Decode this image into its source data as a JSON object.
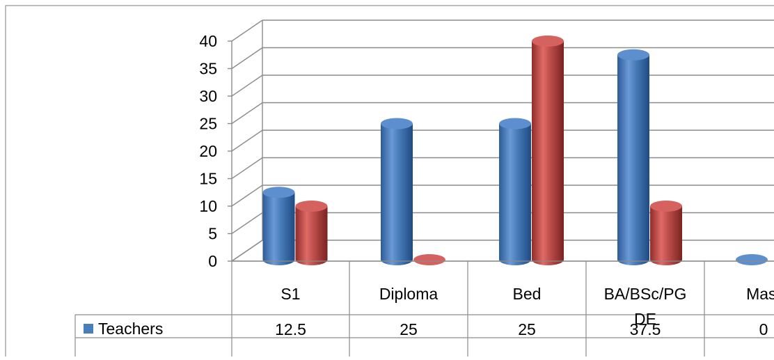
{
  "chart_data": {
    "type": "bar",
    "title": "",
    "xlabel": "",
    "ylabel": "",
    "ylim": [
      0,
      40
    ],
    "yticks": [
      0,
      5,
      10,
      15,
      20,
      25,
      30,
      35,
      40
    ],
    "grid": true,
    "style": "3d-cylinder",
    "legend": "data-table-rows",
    "categories": [
      "S1",
      "Diploma",
      "Bed",
      "BA/BSc/PGDE",
      "Masters"
    ],
    "visible_category_labels": [
      "S1",
      "Diploma",
      "Bed",
      "BA/BSc/PG",
      "Mast"
    ],
    "visible_category_label_overflow": [
      "",
      "",
      "",
      "DE",
      ""
    ],
    "series": [
      {
        "name": "Teachers",
        "values": [
          12.5,
          25,
          25,
          37.5,
          0
        ],
        "color": "#4a7ebb"
      },
      {
        "name": "",
        "values": [
          10,
          0,
          40,
          10,
          null
        ],
        "color": "#c0504d"
      }
    ],
    "table_values": [
      [
        "12.5",
        "25",
        "25",
        "37.5",
        "0"
      ]
    ]
  }
}
